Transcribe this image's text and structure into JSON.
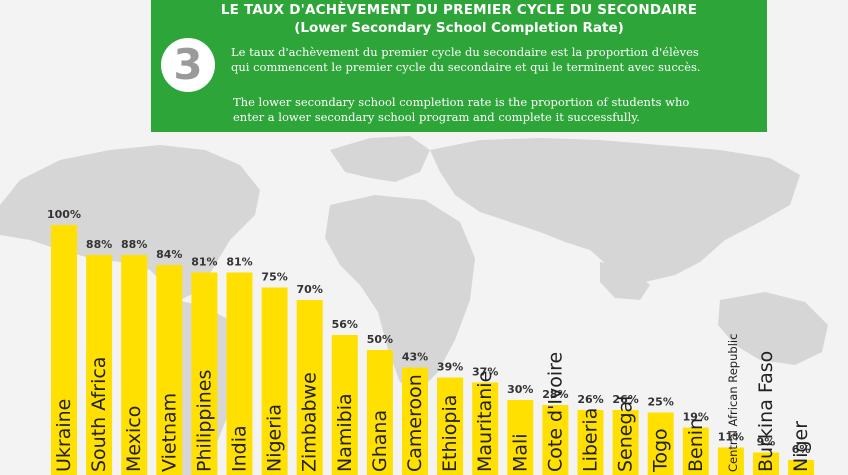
{
  "header": {
    "title_fr": "LE TAUX D'ACHÈVEMENT DU PREMIER CYCLE DU SECONDAIRE",
    "title_en": "(Lower Secondary School Completion Rate)",
    "number": "3",
    "description_fr_line1": "Le taux d'achèvement du premier cycle du secondaire est la proportion d'élèves",
    "description_fr_line2": "qui commencent le premier cycle du secondaire et qui le terminent avec succès.",
    "description_en_line1": "The lower secondary school completion rate is the proportion  of students who",
    "description_en_line2": "enter a lower secondary school  program and complete it successfully."
  },
  "colors": {
    "panel": "#2da539",
    "bar": "#ffe000",
    "map": "#d6d6d6",
    "background": "#f3f3f3"
  },
  "chart_data": {
    "type": "bar",
    "categories": [
      "Ukraine",
      "South Africa",
      "Mexico",
      "Vietnam",
      "Philippines",
      "India",
      "Nigeria",
      "Zimbabwe",
      "Namibia",
      "Ghana",
      "Cameroon",
      "Ethiopia",
      "Mauritanie",
      "Mali",
      "Cote d'Ivoire",
      "Liberia",
      "Senegal",
      "Togo",
      "Benin",
      "Central African Republic",
      "Burkina Faso",
      "Niger"
    ],
    "values": [
      100,
      88,
      88,
      84,
      81,
      81,
      75,
      70,
      56,
      50,
      43,
      39,
      37,
      30,
      28,
      26,
      26,
      25,
      19,
      11,
      9,
      6
    ],
    "value_labels": [
      "100%",
      "88%",
      "88%",
      "84%",
      "81%",
      "81%",
      "75%",
      "70%",
      "56%",
      "50%",
      "43%",
      "39%",
      "37%",
      "30%",
      "28%",
      "26%",
      "26%",
      "25%",
      "19%",
      "11%",
      "9%",
      "6%"
    ],
    "unit": "%",
    "ylim": [
      0,
      100
    ],
    "grid": false,
    "legend": "none"
  }
}
